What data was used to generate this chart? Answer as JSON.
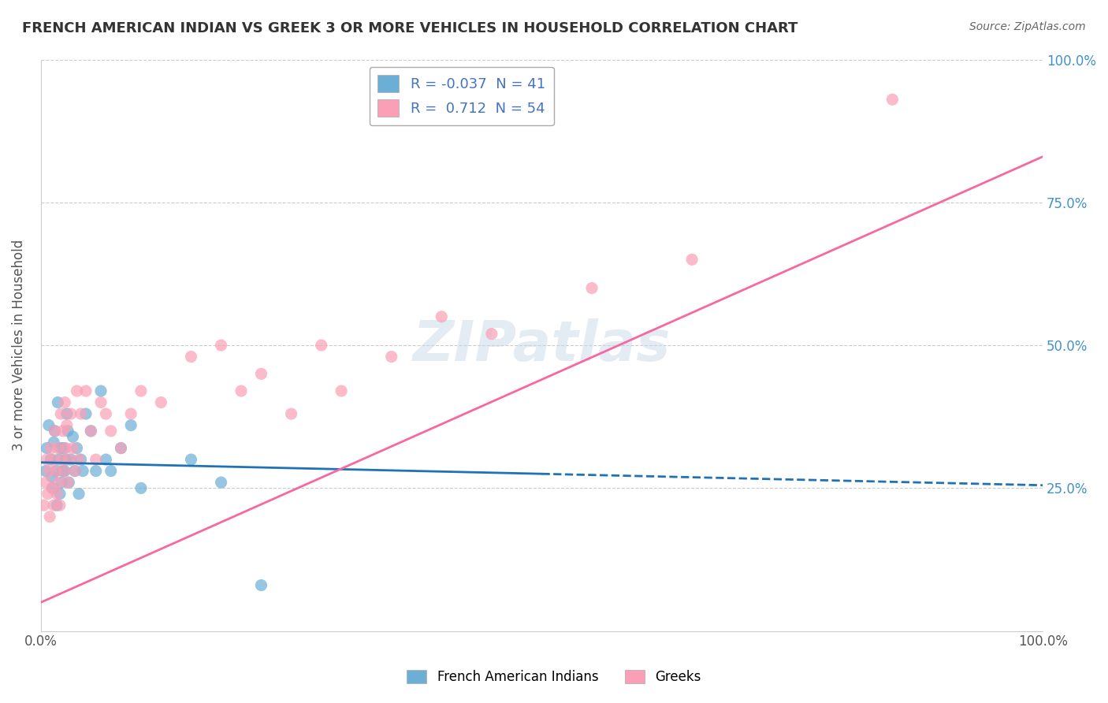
{
  "title": "FRENCH AMERICAN INDIAN VS GREEK 3 OR MORE VEHICLES IN HOUSEHOLD CORRELATION CHART",
  "source": "Source: ZipAtlas.com",
  "xlabel_bottom": "",
  "ylabel": "3 or more Vehicles in Household",
  "x_tick_labels": [
    "0.0%",
    "100.0%"
  ],
  "y_tick_labels_right": [
    "100.0%",
    "75.0%",
    "50.0%",
    "25.0%"
  ],
  "legend_label1": "French American Indians",
  "legend_label2": "Greeks",
  "R1": "-0.037",
  "N1": "41",
  "R2": "0.712",
  "N2": "54",
  "blue_color": "#6baed6",
  "pink_color": "#fa9fb5",
  "blue_line_color": "#2171b5",
  "pink_line_color": "#f768a1",
  "right_axis_color": "#4292c6",
  "watermark": "ZIPatlas",
  "blue_dots_x": [
    0.5,
    0.6,
    0.8,
    1.0,
    1.1,
    1.2,
    1.3,
    1.4,
    1.5,
    1.6,
    1.7,
    1.8,
    1.9,
    2.0,
    2.1,
    2.2,
    2.3,
    2.4,
    2.5,
    2.6,
    2.7,
    2.8,
    3.0,
    3.2,
    3.4,
    3.6,
    3.8,
    4.0,
    4.2,
    4.5,
    5.0,
    5.5,
    6.0,
    6.5,
    7.0,
    8.0,
    9.0,
    10.0,
    15.0,
    18.0,
    22.0
  ],
  "blue_dots_y": [
    28,
    32,
    36,
    30,
    27,
    25,
    33,
    35,
    28,
    22,
    40,
    30,
    24,
    32,
    26,
    28,
    32,
    28,
    30,
    38,
    35,
    26,
    30,
    34,
    28,
    32,
    24,
    30,
    28,
    38,
    35,
    28,
    42,
    30,
    28,
    32,
    36,
    25,
    30,
    26,
    8
  ],
  "pink_dots_x": [
    0.3,
    0.5,
    0.6,
    0.7,
    0.8,
    0.9,
    1.0,
    1.1,
    1.2,
    1.3,
    1.4,
    1.5,
    1.6,
    1.7,
    1.8,
    1.9,
    2.0,
    2.1,
    2.2,
    2.3,
    2.4,
    2.5,
    2.6,
    2.7,
    2.8,
    3.0,
    3.2,
    3.4,
    3.6,
    3.8,
    4.0,
    4.5,
    5.0,
    5.5,
    6.0,
    6.5,
    7.0,
    8.0,
    9.0,
    10.0,
    12.0,
    15.0,
    18.0,
    20.0,
    22.0,
    25.0,
    28.0,
    30.0,
    35.0,
    40.0,
    45.0,
    55.0,
    65.0,
    85.0
  ],
  "pink_dots_y": [
    22,
    26,
    30,
    24,
    28,
    20,
    32,
    25,
    30,
    22,
    35,
    28,
    24,
    32,
    26,
    22,
    38,
    30,
    35,
    28,
    40,
    32,
    36,
    26,
    30,
    38,
    32,
    28,
    42,
    30,
    38,
    42,
    35,
    30,
    40,
    38,
    35,
    32,
    38,
    42,
    40,
    48,
    50,
    42,
    45,
    38,
    50,
    42,
    48,
    55,
    52,
    60,
    65,
    93
  ],
  "xlim": [
    0,
    100
  ],
  "ylim": [
    0,
    100
  ],
  "blue_trend_x": [
    0,
    50
  ],
  "blue_trend_y_start": 29.5,
  "blue_trend_y_end": 27.5,
  "pink_trend_x": [
    0,
    100
  ],
  "pink_trend_y_start": 5,
  "pink_trend_y_end": 83
}
